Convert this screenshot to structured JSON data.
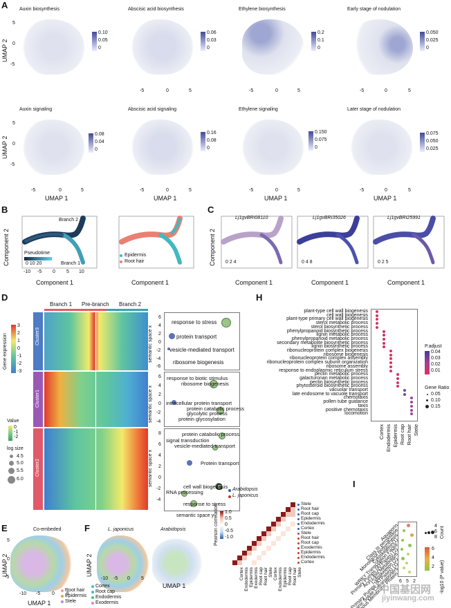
{
  "panel_letters": {
    "a": "A",
    "b": "B",
    "c": "C",
    "d": "D",
    "e": "E",
    "f": "F",
    "g": "G",
    "h": "H",
    "i": "I"
  },
  "panel_a": {
    "titles": [
      "Auxin biosynthesis",
      "Abscisic acid biosynthesis",
      "Ethylene biosynthesis",
      "Early stage of nodulation",
      "Auxin signaling",
      "Abscisic acid signaling",
      "Ethylene signaling",
      "Later stage of nodulation"
    ],
    "colorbars": [
      [
        "0.10",
        "0.05",
        "0"
      ],
      [
        "0.06",
        "0.03",
        "0"
      ],
      [
        "0.2",
        "0.1",
        "0"
      ],
      [
        "0.050",
        "0.025",
        "0"
      ],
      [
        "0.08",
        "0.04",
        "0"
      ],
      [
        "0.16",
        "0.08",
        "0"
      ],
      [
        "0.150",
        "0.075",
        "0"
      ],
      [
        "0.075",
        "0.050",
        "0.025"
      ]
    ],
    "yticks": [
      "5",
      "0",
      "-5"
    ],
    "xticks": [
      "-5",
      "0",
      "5"
    ],
    "ylabel": "UMAP 2",
    "xlabel": "UMAP 1"
  },
  "panel_b": {
    "labels": {
      "branch2": "Branch 2",
      "branch1": "Branch 1",
      "pseudotime": "Pseudotime",
      "pt_ticks": "0 10 20",
      "epidermis": "Epidermis",
      "root_hair": "Root hair"
    },
    "ylabel": "Component 2",
    "xlabel": "Component 1",
    "yticks": [
      "4",
      "2",
      "0",
      "-2",
      "-4"
    ],
    "xticks": [
      "-10",
      "-5",
      "0",
      "5",
      "10"
    ]
  },
  "panel_c": {
    "genes": [
      "Lj1gvBRI08110",
      "Lj1gvBRI35026",
      "Lj1gvBRI25991"
    ],
    "scales": [
      "0 2 4",
      "0 4 8",
      "0 2 5"
    ],
    "ylabel": "Component 2",
    "xlabel": "Component 1"
  },
  "panel_d": {
    "headers": [
      "Branch 1",
      "Pre-branch",
      "Branch 2"
    ],
    "clusters": [
      "Cluster3",
      "Cluster1",
      "Cluster2"
    ],
    "expr_label": "Gene expression",
    "expr_ticks": [
      "3",
      "2",
      "1",
      "0",
      "-1",
      "-2",
      "-3"
    ],
    "value_label": "Value",
    "value_ticks": [
      "0",
      "-1",
      "-2"
    ],
    "logsize_label": "log size",
    "logsize_ticks": [
      "4.5",
      "5.0",
      "5.5",
      "6.0"
    ],
    "semantic_x": "semantic space x",
    "semantic_y": "semantic space y",
    "terms_c3": [
      "response to stress",
      "protein transport",
      "vesicle-mediated transport",
      "ribosome biogenesis"
    ],
    "terms_c1": [
      "response to biotic stimulus",
      "ribosome biogenesis",
      "intracellular protein transport",
      "protein catabolic process",
      "glycolytic process",
      "protein glycosylation"
    ],
    "terms_c2": [
      "protein catabolic process",
      "signal transduction",
      "vesicle-mediated transport",
      "Protein transport",
      "cell wall biogenesis",
      "RNA processing",
      "response to stress"
    ],
    "sem_ticks1": [
      "6",
      "4",
      "2",
      "0",
      "-2",
      "-4",
      "-6"
    ],
    "sem_ticks2": [
      "6",
      "4",
      "2",
      "0",
      "-2",
      "-4"
    ],
    "sem_ticks3": [
      "8",
      "6",
      "4",
      "2",
      "0",
      "-2",
      "-4"
    ]
  },
  "panel_e": {
    "title": "Co-embeded",
    "legend": [
      "Root hair",
      "Epidermis",
      "Stele"
    ],
    "xlabel": "UMAP 1",
    "ylabel": "UMAP 2",
    "xticks": [
      "-10",
      "-5",
      "0",
      "5"
    ],
    "yticks": [
      "5",
      "0",
      "-5"
    ]
  },
  "panel_f": {
    "titles": [
      "L. japonicus",
      "Arabidopsis"
    ],
    "legend": [
      "Cortex",
      "Root cap",
      "Endodermis",
      "Exodermis"
    ],
    "xlabel": "UMAP 1",
    "ylabel": "UMAP 2",
    "xticks": [
      "-10",
      "-5",
      "0",
      "5"
    ]
  },
  "panel_g": {
    "legend": [
      "Arabidopsis",
      "L. japonicus"
    ],
    "scale_label": "Pearson correlation",
    "scale_ticks": [
      "1.0",
      "0.5",
      "0",
      "-0.5",
      "-1.0"
    ],
    "rows": [
      "Stele",
      "Root hair",
      "Root cap",
      "Epidermis",
      "Endodermis",
      "Cortex",
      "Stele",
      "Root hair",
      "Root cap",
      "Exodermis",
      "Epidermis",
      "Endodermis",
      "Cortex"
    ]
  },
  "panel_h": {
    "terms": [
      "plant-type cell wall biogenesis",
      "cell wall biogenesis",
      "plant-type primary cell wall biogenesis",
      "sterol metabolic process",
      "sterol biosynthetic process",
      "phenylpropanoid biosynthetic process",
      "lignin metabolic process",
      "phenylpropanoid metabolic process",
      "secondary metabolite biosynthetic process",
      "lignin biosynthetic process",
      "ribonucleoprotein complex biogenesis",
      "ribosome biogenesis",
      "ribonucleoprotein complex assembly",
      "ribonucleoprotein complex subunit organization",
      "ribosome assembly",
      "response to endoplasmic reticulum stress",
      "pectin metabolic process",
      "galacturonan metabolic process",
      "pectin biosynthetic process",
      "phytosteroid biosynthetic process",
      "vacuolar transport",
      "late endosome to vacuole transport",
      "chemotaxis",
      "pollen tube guidance",
      "taxis",
      "positive chemotaxis",
      "locomotion"
    ],
    "columns": [
      "Cortex",
      "Endodermis",
      "Epidermis",
      "Root cap",
      "Root hair",
      "Stele"
    ],
    "padjust_label": "P.adjust",
    "padjust_ticks": [
      "0.04",
      "0.03",
      "0.02",
      "0.01"
    ],
    "ratio_label": "Gene Ratio",
    "ratio_ticks": [
      "0.05",
      "0.10",
      "0.15"
    ]
  },
  "panel_i": {
    "terms": [
      "Aquaporin",
      "Class III peroxidase",
      "Monolignol biosynthesis",
      "Cytoskeleton(1)",
      "WRKY Transcription Factor",
      "Primary Pumps (ATPases) (2)",
      "Acyl-Lipid Metabolism",
      "Cytoskeleton (2)",
      "Primary Pumps (ATPases) (1)",
      "Organic Solute Cotransporters",
      "Miscellaneous Membrane Protein"
    ],
    "count_label": "Count",
    "count_ticks": [
      "4",
      "6",
      "8"
    ],
    "pval_label": "-log10 (P value)",
    "pval_ticks": [
      "6",
      "4",
      "2"
    ],
    "xticks": [
      "6",
      "5",
      "2"
    ]
  },
  "watermark": [
    "中国基因网",
    "jiyinwang.com"
  ]
}
